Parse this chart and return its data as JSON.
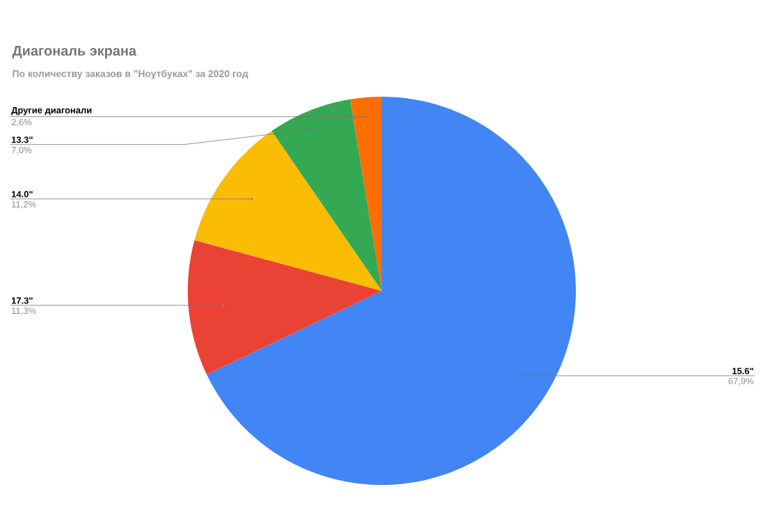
{
  "chart_data": {
    "type": "pie",
    "title": "Диагональ экрана",
    "subtitle": "По количеству заказов в \"Ноутбуках\" за 2020 год",
    "categories": [
      "15.6\"",
      "17.3\"",
      "14.0\"",
      "13.3\"",
      "Другие диагонали"
    ],
    "values": [
      67.9,
      11.3,
      11.2,
      7.0,
      2.6
    ],
    "value_labels": [
      "67,9%",
      "11,3%",
      "11,2%",
      "7,0%",
      "2,6%"
    ],
    "colors": [
      "#4285f4",
      "#ea4335",
      "#fbbc04",
      "#34a853",
      "#ff6d01"
    ]
  }
}
